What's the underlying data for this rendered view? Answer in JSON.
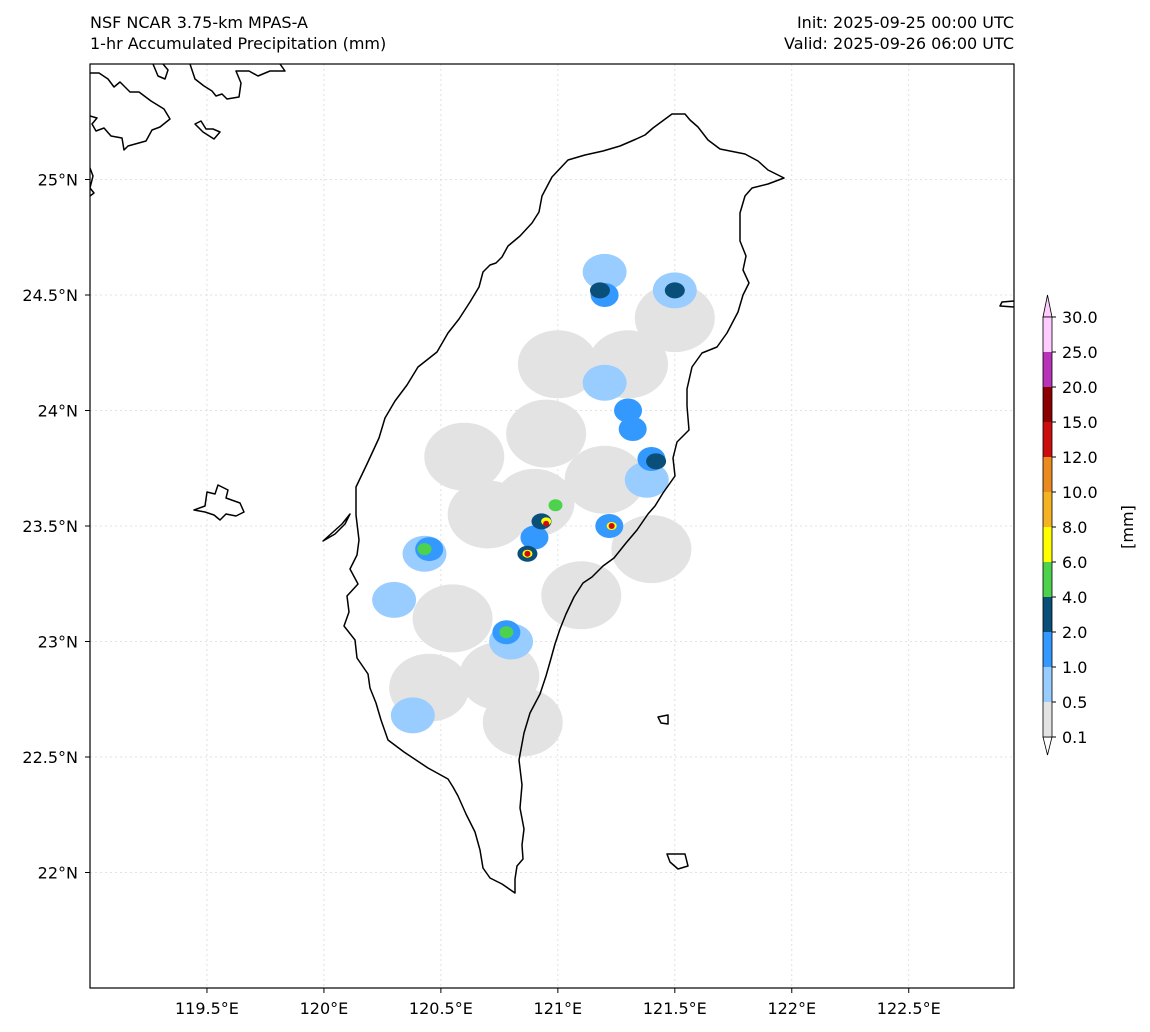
{
  "header": {
    "model_title": "NSF NCAR 3.75-km MPAS-A",
    "field_title": "1-hr Accumulated Precipitation (mm)",
    "init_text": "Init: 2025-09-25 00:00 UTC",
    "valid_text": "Valid: 2025-09-26 06:00 UTC"
  },
  "map": {
    "lon_range": [
      119.0,
      122.95
    ],
    "lat_range": [
      21.5,
      25.5
    ],
    "lon_ticks": [
      {
        "value": 119.5,
        "label": "119.5°E"
      },
      {
        "value": 120.0,
        "label": "120°E"
      },
      {
        "value": 120.5,
        "label": "120.5°E"
      },
      {
        "value": 121.0,
        "label": "121°E"
      },
      {
        "value": 121.5,
        "label": "121.5°E"
      },
      {
        "value": 122.0,
        "label": "122°E"
      },
      {
        "value": 122.5,
        "label": "122.5°E"
      }
    ],
    "lat_ticks": [
      {
        "value": 22.0,
        "label": "22°N"
      },
      {
        "value": 22.5,
        "label": "22.5°N"
      },
      {
        "value": 23.0,
        "label": "23°N"
      },
      {
        "value": 23.5,
        "label": "23.5°N"
      },
      {
        "value": 24.0,
        "label": "24°N"
      },
      {
        "value": 24.5,
        "label": "24.5°N"
      },
      {
        "value": 25.0,
        "label": "25°N"
      }
    ],
    "gridlines": true,
    "coastline_color": "#000000",
    "colorbar": {
      "unit_label": "[mm]",
      "levels": [
        "0.1",
        "0.5",
        "1.0",
        "2.0",
        "4.0",
        "6.0",
        "8.0",
        "10.0",
        "12.0",
        "15.0",
        "20.0",
        "25.0",
        "30.0"
      ],
      "colors": [
        "#e3e3e3",
        "#99ccff",
        "#3399ff",
        "#0a4f7a",
        "#4dd24d",
        "#ffff00",
        "#f5b323",
        "#eb8a1f",
        "#cc0d0d",
        "#8a0000",
        "#b833b8",
        "#ffccff"
      ]
    }
  },
  "chart_data": {
    "type": "heatmap",
    "variable": "1-hr Accumulated Precipitation (mm)",
    "cells": [
      {
        "lon": 120.7,
        "lat": 23.55,
        "mm": 0.3
      },
      {
        "lon": 120.55,
        "lat": 23.1,
        "mm": 0.3
      },
      {
        "lon": 120.45,
        "lat": 22.8,
        "mm": 0.3
      },
      {
        "lon": 120.9,
        "lat": 23.6,
        "mm": 0.3
      },
      {
        "lon": 120.95,
        "lat": 23.9,
        "mm": 0.3
      },
      {
        "lon": 121.0,
        "lat": 24.2,
        "mm": 0.3
      },
      {
        "lon": 121.2,
        "lat": 23.7,
        "mm": 0.3
      },
      {
        "lon": 121.1,
        "lat": 23.2,
        "mm": 0.3
      },
      {
        "lon": 120.75,
        "lat": 22.85,
        "mm": 0.3
      },
      {
        "lon": 121.3,
        "lat": 24.2,
        "mm": 0.3
      },
      {
        "lon": 121.5,
        "lat": 24.4,
        "mm": 0.3
      },
      {
        "lon": 120.6,
        "lat": 23.8,
        "mm": 0.3
      },
      {
        "lon": 121.4,
        "lat": 23.4,
        "mm": 0.3
      },
      {
        "lon": 120.85,
        "lat": 22.65,
        "mm": 0.3
      },
      {
        "lon": 121.2,
        "lat": 24.6,
        "mm": 0.7
      },
      {
        "lon": 121.5,
        "lat": 24.52,
        "mm": 0.7
      },
      {
        "lon": 120.43,
        "lat": 23.38,
        "mm": 0.7
      },
      {
        "lon": 120.3,
        "lat": 23.18,
        "mm": 0.7
      },
      {
        "lon": 120.38,
        "lat": 22.68,
        "mm": 0.7
      },
      {
        "lon": 121.2,
        "lat": 24.12,
        "mm": 0.7
      },
      {
        "lon": 121.38,
        "lat": 23.7,
        "mm": 0.7
      },
      {
        "lon": 120.8,
        "lat": 23.0,
        "mm": 0.7
      },
      {
        "lon": 120.9,
        "lat": 23.45,
        "mm": 1.5
      },
      {
        "lon": 120.45,
        "lat": 23.4,
        "mm": 1.5
      },
      {
        "lon": 121.22,
        "lat": 23.5,
        "mm": 1.5
      },
      {
        "lon": 121.2,
        "lat": 24.5,
        "mm": 1.5
      },
      {
        "lon": 120.78,
        "lat": 23.04,
        "mm": 1.5
      },
      {
        "lon": 121.3,
        "lat": 24.0,
        "mm": 1.5
      },
      {
        "lon": 121.32,
        "lat": 23.92,
        "mm": 1.5
      },
      {
        "lon": 121.4,
        "lat": 23.79,
        "mm": 1.5
      },
      {
        "lon": 121.5,
        "lat": 24.52,
        "mm": 2.5
      },
      {
        "lon": 121.18,
        "lat": 24.52,
        "mm": 3.0
      },
      {
        "lon": 120.93,
        "lat": 23.52,
        "mm": 3.0
      },
      {
        "lon": 120.87,
        "lat": 23.38,
        "mm": 3.0
      },
      {
        "lon": 121.42,
        "lat": 23.78,
        "mm": 3.0
      },
      {
        "lon": 120.99,
        "lat": 23.59,
        "mm": 5.0
      },
      {
        "lon": 120.43,
        "lat": 23.4,
        "mm": 5.0
      },
      {
        "lon": 120.78,
        "lat": 23.04,
        "mm": 5.0
      },
      {
        "lon": 120.95,
        "lat": 23.52,
        "mm": 7.0
      },
      {
        "lon": 121.23,
        "lat": 23.5,
        "mm": 7.0
      },
      {
        "lon": 120.87,
        "lat": 23.38,
        "mm": 7.0
      },
      {
        "lon": 120.95,
        "lat": 23.51,
        "mm": 13.0
      },
      {
        "lon": 120.87,
        "lat": 23.38,
        "mm": 13.0
      },
      {
        "lon": 121.23,
        "lat": 23.5,
        "mm": 13.0
      }
    ]
  }
}
